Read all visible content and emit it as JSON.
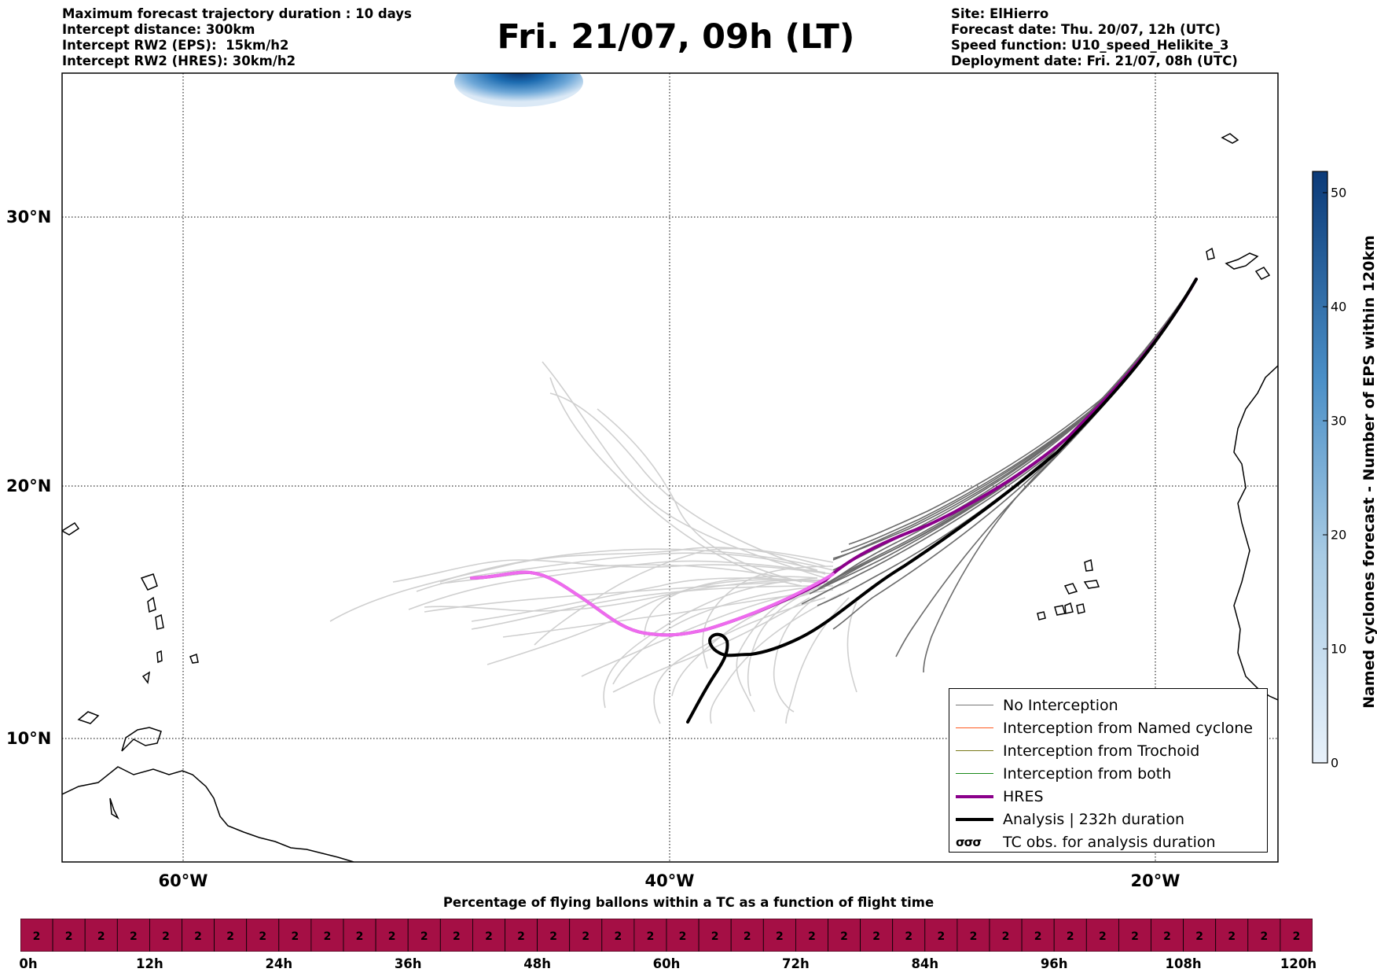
{
  "header": {
    "title": "Fri. 21/07, 09h (LT)",
    "left_info": [
      "Maximum forecast trajectory duration : 10 days",
      "Intercept distance: 300km",
      "Intercept RW2 (EPS):  15km/h2",
      "Intercept RW2 (HRES): 30km/h2"
    ],
    "right_info": [
      "Site: ElHierro",
      "Forecast date: Thu. 20/07, 12h (UTC)",
      "Speed function: U10_speed_Helikite_3",
      "Deployment date: Fri. 21/07, 08h (UTC)"
    ]
  },
  "map": {
    "lat_labels": [
      "30°N",
      "20°N",
      "10°N"
    ],
    "lon_labels": [
      "60°W",
      "40°W",
      "20°W"
    ],
    "legend": [
      {
        "label": "No Interception",
        "color": "#777777",
        "style": "thin"
      },
      {
        "label": "Interception from Named cyclone",
        "color": "#ff5a1f",
        "style": "thin"
      },
      {
        "label": "Interception from Trochoid",
        "color": "#7a7a1a",
        "style": "thin"
      },
      {
        "label": "Interception from both",
        "color": "#1a8a1a",
        "style": "thin"
      },
      {
        "label": "HRES",
        "color": "#8b008b",
        "style": "thick"
      },
      {
        "label": "Analysis | 232h duration",
        "color": "#000000",
        "style": "thick"
      },
      {
        "label": "TC obs. for analysis duration",
        "color": "#000000",
        "style": "symbol",
        "symbol": "σσσ"
      }
    ],
    "colorbar": {
      "title": "Named cyclones forecast - Number of EPS within 120km",
      "ticks": [
        "0",
        "10",
        "20",
        "30",
        "40",
        "50"
      ],
      "color_low": "#e8f1fa",
      "color_high": "#0b3a78"
    }
  },
  "timebar": {
    "title": "Percentage of flying ballons within a TC as a function of flight time",
    "cell_value": "2",
    "cell_count": 40,
    "cell_color": "#a50f45",
    "labels": [
      "0h",
      "12h",
      "24h",
      "36h",
      "48h",
      "60h",
      "72h",
      "84h",
      "96h",
      "108h",
      "120h"
    ]
  }
}
